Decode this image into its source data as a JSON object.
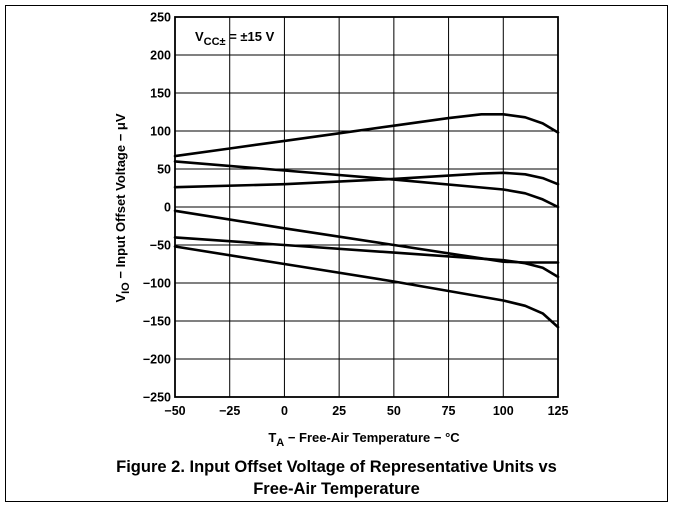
{
  "chart_data": {
    "type": "line",
    "xlim": [
      -50,
      125
    ],
    "ylim": [
      -250,
      250
    ],
    "grid": true,
    "x_ticks": [
      -50,
      -25,
      0,
      25,
      50,
      75,
      100,
      125
    ],
    "y_ticks": [
      250,
      200,
      150,
      100,
      50,
      0,
      -50,
      -100,
      -150,
      -200,
      -250
    ],
    "x_tick_labels": [
      "−50",
      "−25",
      "0",
      "25",
      "50",
      "75",
      "100",
      "125"
    ],
    "y_tick_labels": [
      "250",
      "200",
      "150",
      "100",
      "50",
      "0",
      "−50",
      "−100",
      "−150",
      "−200",
      "−250"
    ],
    "xlabel": {
      "main": "T",
      "sub": "A",
      "rest": " − Free-Air Temperature − °C"
    },
    "ylabel": {
      "main": "V",
      "sub": "IO",
      "rest": " − Input Offset Voltage − μV"
    },
    "annotation": {
      "main": "V",
      "sub": "CC±",
      "rest": " = ±15 V"
    },
    "series": [
      {
        "x": [
          -50,
          -25,
          0,
          25,
          50,
          75,
          90,
          100,
          110,
          118,
          125
        ],
        "y": [
          67,
          77,
          87,
          97,
          107,
          117,
          122,
          122,
          118,
          110,
          98
        ]
      },
      {
        "x": [
          -50,
          0,
          50,
          90,
          100,
          110,
          118,
          125
        ],
        "y": [
          26,
          30,
          37,
          44,
          45,
          43,
          38,
          30
        ]
      },
      {
        "x": [
          -50,
          0,
          50,
          100,
          110,
          118,
          125
        ],
        "y": [
          60,
          48,
          36,
          23,
          18,
          10,
          0
        ]
      },
      {
        "x": [
          -50,
          0,
          50,
          100,
          110,
          118,
          125
        ],
        "y": [
          -40,
          -50,
          -60,
          -70,
          -74,
          -80,
          -92
        ]
      },
      {
        "x": [
          -50,
          0,
          50,
          100,
          110,
          118,
          125
        ],
        "y": [
          -5,
          -28,
          -50,
          -72,
          -73,
          -73,
          -73
        ]
      },
      {
        "x": [
          -50,
          0,
          50,
          100,
          110,
          118,
          125
        ],
        "y": [
          -52,
          -75,
          -98,
          -123,
          -130,
          -140,
          -158
        ]
      }
    ]
  },
  "caption": {
    "line1": "Figure 2. Input Offset Voltage of Representative Units vs",
    "line2": "Free-Air Temperature"
  }
}
